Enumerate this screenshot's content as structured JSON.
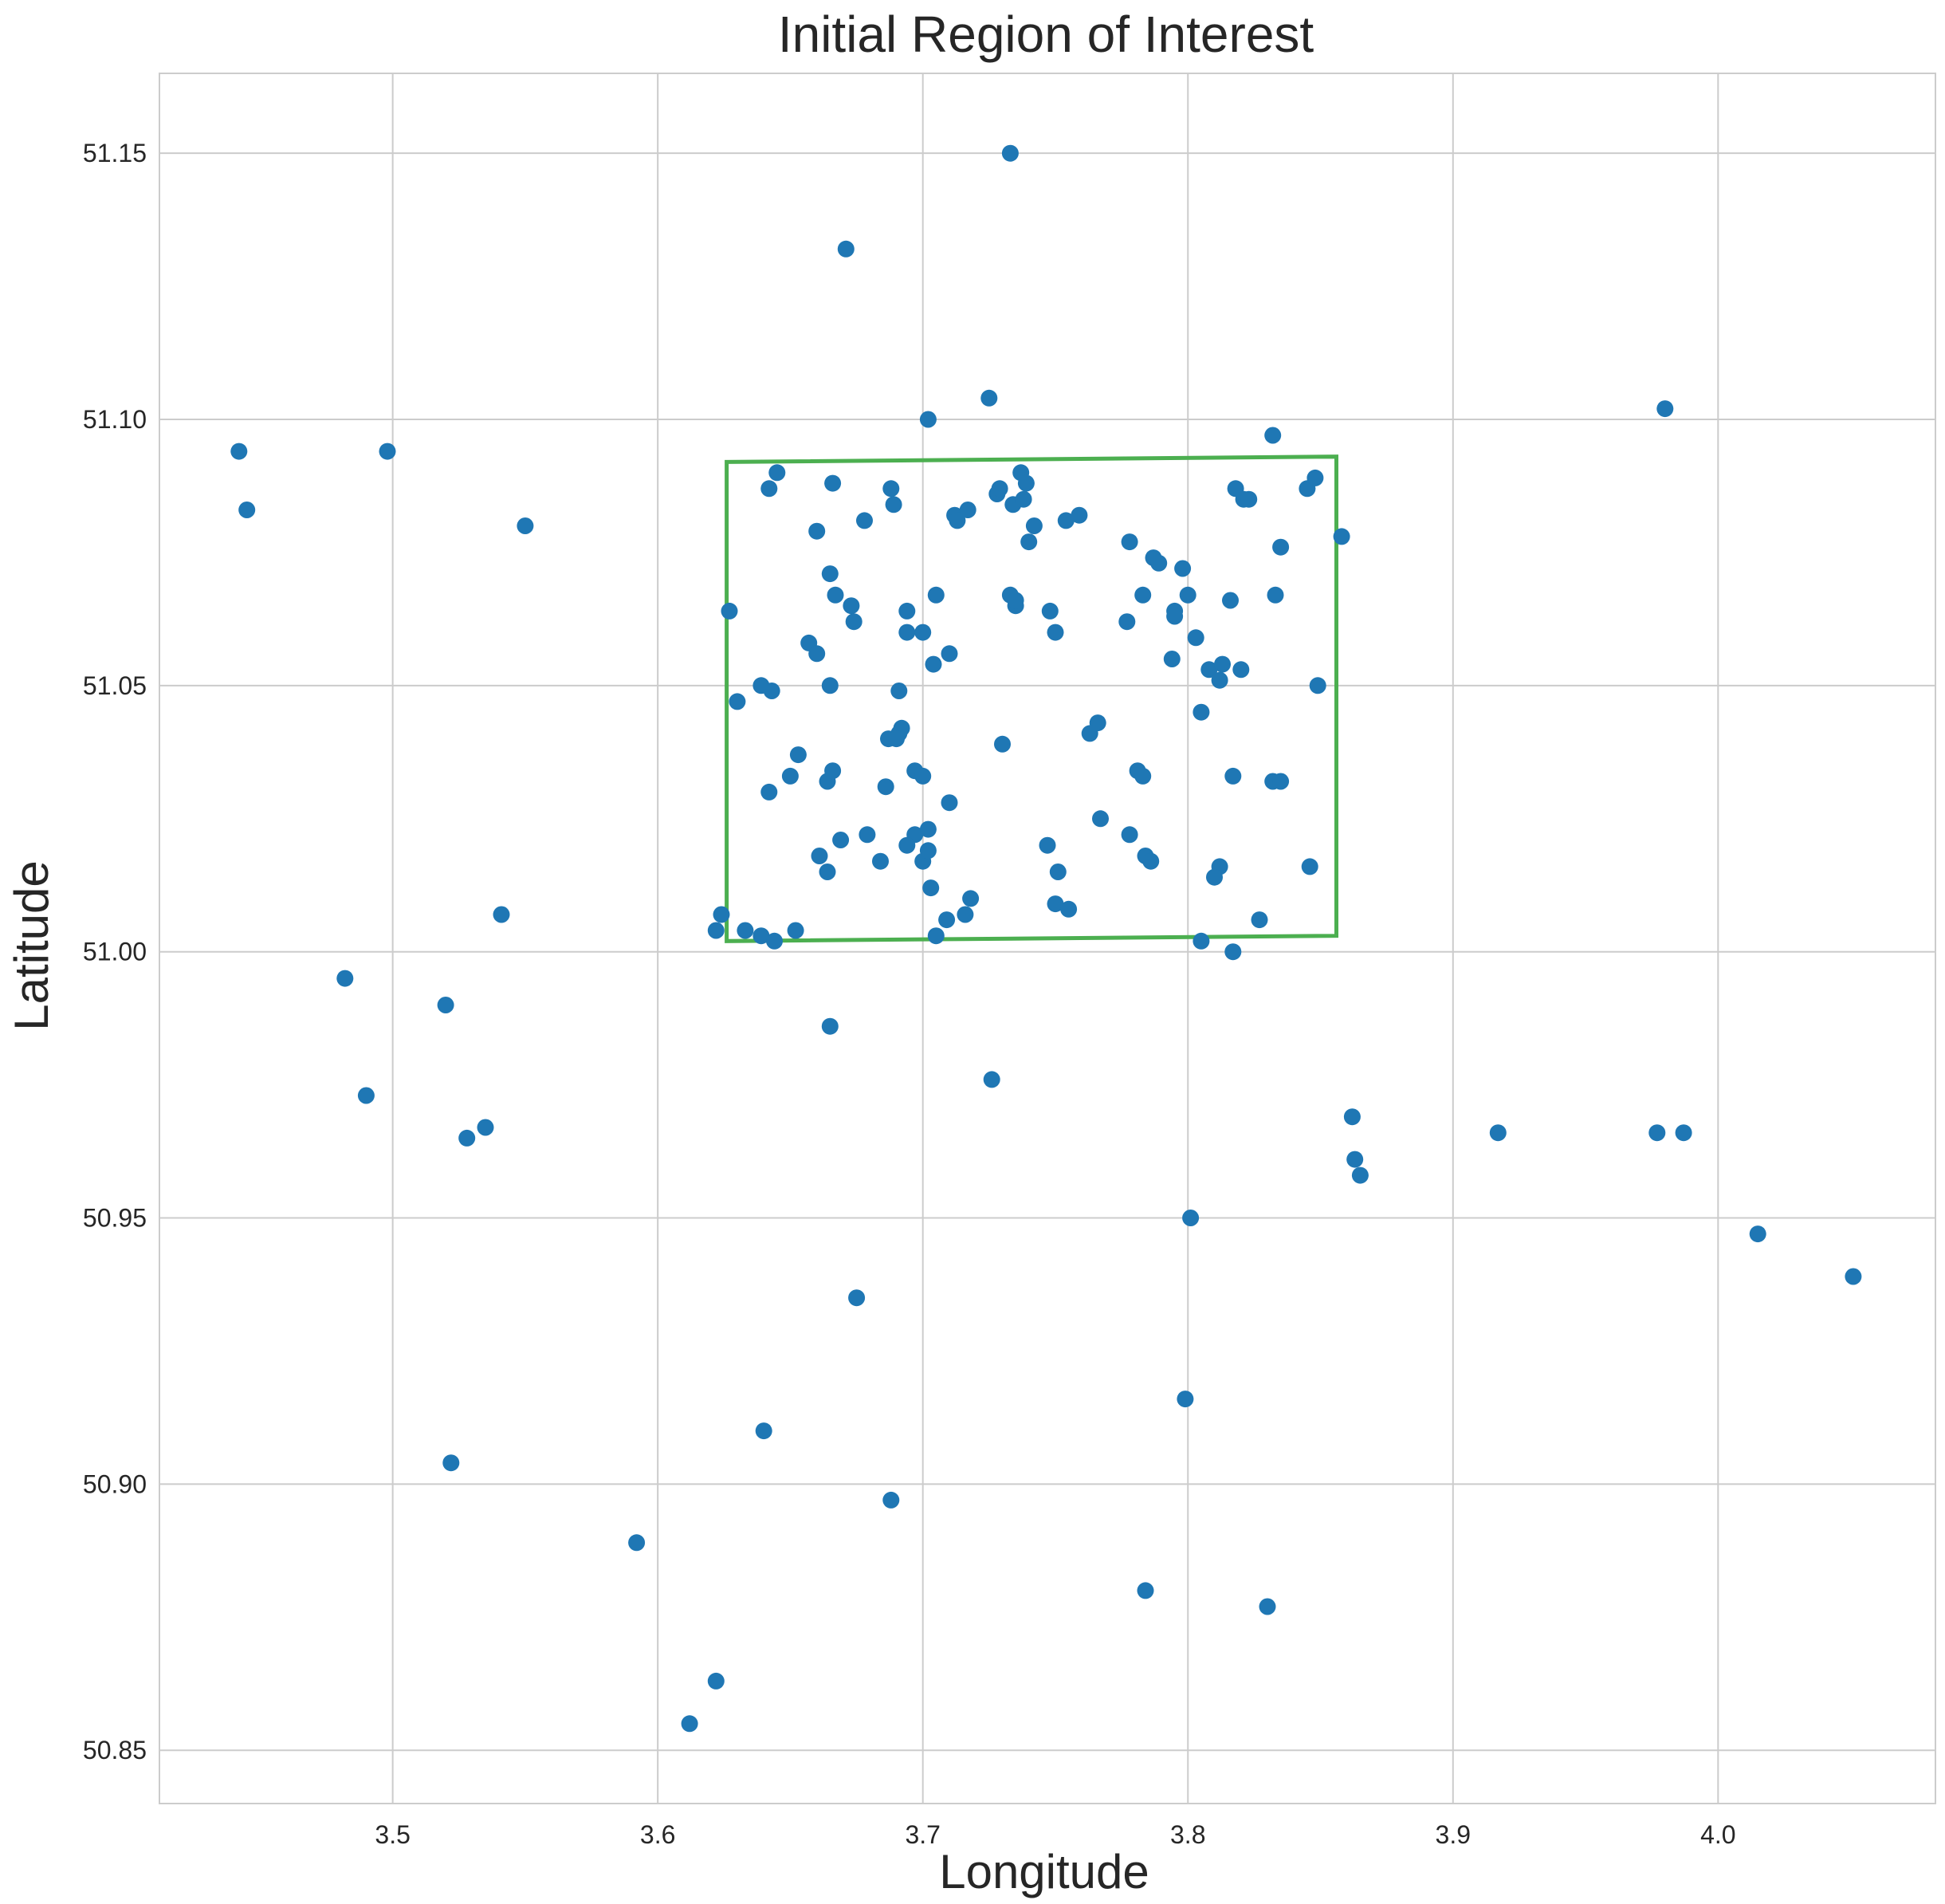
{
  "chart_data": {
    "type": "scatter",
    "title": "Initial Region of Interest",
    "xlabel": "Longitude",
    "ylabel": "Latitude",
    "xlim": [
      3.412,
      4.082
    ],
    "ylim": [
      50.84,
      51.165
    ],
    "xticks": [
      3.5,
      3.6,
      3.7,
      3.8,
      3.9,
      4.0
    ],
    "xtick_labels": [
      "3.5",
      "3.6",
      "3.7",
      "3.8",
      "3.9",
      "4.0"
    ],
    "yticks": [
      50.85,
      50.9,
      50.95,
      51.0,
      51.05,
      51.1,
      51.15
    ],
    "ytick_labels": [
      "50.85",
      "50.90",
      "50.95",
      "51.00",
      "51.05",
      "51.10",
      "51.15"
    ],
    "grid": true,
    "marker_color": "#1f77b4",
    "region_color": "#4caf50",
    "region_polygon": [
      [
        3.626,
        51.092
      ],
      [
        3.856,
        51.093
      ],
      [
        3.856,
        51.003
      ],
      [
        3.626,
        51.002
      ]
    ],
    "points": [
      [
        3.733,
        51.15
      ],
      [
        3.671,
        51.132
      ],
      [
        3.725,
        51.104
      ],
      [
        3.702,
        51.1
      ],
      [
        3.98,
        51.102
      ],
      [
        3.442,
        51.094
      ],
      [
        3.498,
        51.094
      ],
      [
        3.445,
        51.083
      ],
      [
        3.55,
        51.08
      ],
      [
        3.832,
        51.097
      ],
      [
        3.642,
        51.087
      ],
      [
        3.645,
        51.09
      ],
      [
        3.666,
        51.088
      ],
      [
        3.688,
        51.087
      ],
      [
        3.689,
        51.084
      ],
      [
        3.728,
        51.086
      ],
      [
        3.729,
        51.087
      ],
      [
        3.737,
        51.09
      ],
      [
        3.739,
        51.088
      ],
      [
        3.734,
        51.084
      ],
      [
        3.738,
        51.085
      ],
      [
        3.818,
        51.087
      ],
      [
        3.821,
        51.085
      ],
      [
        3.823,
        51.085
      ],
      [
        3.845,
        51.087
      ],
      [
        3.848,
        51.089
      ],
      [
        3.712,
        51.082
      ],
      [
        3.713,
        51.081
      ],
      [
        3.717,
        51.083
      ],
      [
        3.742,
        51.08
      ],
      [
        3.754,
        51.081
      ],
      [
        3.759,
        51.082
      ],
      [
        3.66,
        51.079
      ],
      [
        3.678,
        51.081
      ],
      [
        3.74,
        51.077
      ],
      [
        3.858,
        51.078
      ],
      [
        3.778,
        51.077
      ],
      [
        3.835,
        51.076
      ],
      [
        3.787,
        51.074
      ],
      [
        3.789,
        51.073
      ],
      [
        3.798,
        51.072
      ],
      [
        3.665,
        51.071
      ],
      [
        3.667,
        51.067
      ],
      [
        3.673,
        51.065
      ],
      [
        3.674,
        51.062
      ],
      [
        3.705,
        51.067
      ],
      [
        3.694,
        51.064
      ],
      [
        3.733,
        51.067
      ],
      [
        3.735,
        51.065
      ],
      [
        3.735,
        51.066
      ],
      [
        3.748,
        51.064
      ],
      [
        3.783,
        51.067
      ],
      [
        3.795,
        51.064
      ],
      [
        3.795,
        51.063
      ],
      [
        3.8,
        51.067
      ],
      [
        3.816,
        51.066
      ],
      [
        3.833,
        51.067
      ],
      [
        3.627,
        51.064
      ],
      [
        3.694,
        51.06
      ],
      [
        3.7,
        51.06
      ],
      [
        3.75,
        51.06
      ],
      [
        3.777,
        51.062
      ],
      [
        3.803,
        51.059
      ],
      [
        3.657,
        51.058
      ],
      [
        3.66,
        51.056
      ],
      [
        3.71,
        51.056
      ],
      [
        3.704,
        51.054
      ],
      [
        3.794,
        51.055
      ],
      [
        3.808,
        51.053
      ],
      [
        3.812,
        51.051
      ],
      [
        3.813,
        51.054
      ],
      [
        3.82,
        51.053
      ],
      [
        3.639,
        51.05
      ],
      [
        3.643,
        51.049
      ],
      [
        3.665,
        51.05
      ],
      [
        3.691,
        51.049
      ],
      [
        3.849,
        51.05
      ],
      [
        3.63,
        51.047
      ],
      [
        3.805,
        51.045
      ],
      [
        3.766,
        51.043
      ],
      [
        3.763,
        51.041
      ],
      [
        3.687,
        51.04
      ],
      [
        3.691,
        51.041
      ],
      [
        3.692,
        51.042
      ],
      [
        3.69,
        51.04
      ],
      [
        3.73,
        51.039
      ],
      [
        3.653,
        51.037
      ],
      [
        3.65,
        51.033
      ],
      [
        3.664,
        51.032
      ],
      [
        3.666,
        51.034
      ],
      [
        3.697,
        51.034
      ],
      [
        3.7,
        51.033
      ],
      [
        3.781,
        51.034
      ],
      [
        3.783,
        51.033
      ],
      [
        3.817,
        51.033
      ],
      [
        3.832,
        51.032
      ],
      [
        3.835,
        51.032
      ],
      [
        3.642,
        51.03
      ],
      [
        3.686,
        51.031
      ],
      [
        3.71,
        51.028
      ],
      [
        3.767,
        51.025
      ],
      [
        3.679,
        51.022
      ],
      [
        3.669,
        51.021
      ],
      [
        3.697,
        51.022
      ],
      [
        3.702,
        51.023
      ],
      [
        3.694,
        51.02
      ],
      [
        3.778,
        51.022
      ],
      [
        3.747,
        51.02
      ],
      [
        3.661,
        51.018
      ],
      [
        3.664,
        51.015
      ],
      [
        3.684,
        51.017
      ],
      [
        3.7,
        51.017
      ],
      [
        3.702,
        51.019
      ],
      [
        3.784,
        51.018
      ],
      [
        3.786,
        51.017
      ],
      [
        3.751,
        51.015
      ],
      [
        3.812,
        51.016
      ],
      [
        3.846,
        51.016
      ],
      [
        3.81,
        51.014
      ],
      [
        3.703,
        51.012
      ],
      [
        3.718,
        51.01
      ],
      [
        3.75,
        51.009
      ],
      [
        3.755,
        51.008
      ],
      [
        3.716,
        51.007
      ],
      [
        3.709,
        51.006
      ],
      [
        3.827,
        51.006
      ],
      [
        3.541,
        51.007
      ],
      [
        3.624,
        51.007
      ],
      [
        3.622,
        51.004
      ],
      [
        3.633,
        51.004
      ],
      [
        3.639,
        51.003
      ],
      [
        3.644,
        51.002
      ],
      [
        3.652,
        51.004
      ],
      [
        3.705,
        51.003
      ],
      [
        3.805,
        51.002
      ],
      [
        3.817,
        51.0
      ],
      [
        3.482,
        50.995
      ],
      [
        3.52,
        50.99
      ],
      [
        3.665,
        50.986
      ],
      [
        3.726,
        50.976
      ],
      [
        3.49,
        50.973
      ],
      [
        3.535,
        50.967
      ],
      [
        3.528,
        50.965
      ],
      [
        3.862,
        50.969
      ],
      [
        3.863,
        50.961
      ],
      [
        3.865,
        50.958
      ],
      [
        3.917,
        50.966
      ],
      [
        3.977,
        50.966
      ],
      [
        3.987,
        50.966
      ],
      [
        3.801,
        50.95
      ],
      [
        4.015,
        50.947
      ],
      [
        4.051,
        50.939
      ],
      [
        3.675,
        50.935
      ],
      [
        3.799,
        50.916
      ],
      [
        3.64,
        50.91
      ],
      [
        3.522,
        50.904
      ],
      [
        3.688,
        50.897
      ],
      [
        3.592,
        50.889
      ],
      [
        3.784,
        50.88
      ],
      [
        3.83,
        50.877
      ],
      [
        3.622,
        50.863
      ],
      [
        3.612,
        50.855
      ]
    ]
  }
}
